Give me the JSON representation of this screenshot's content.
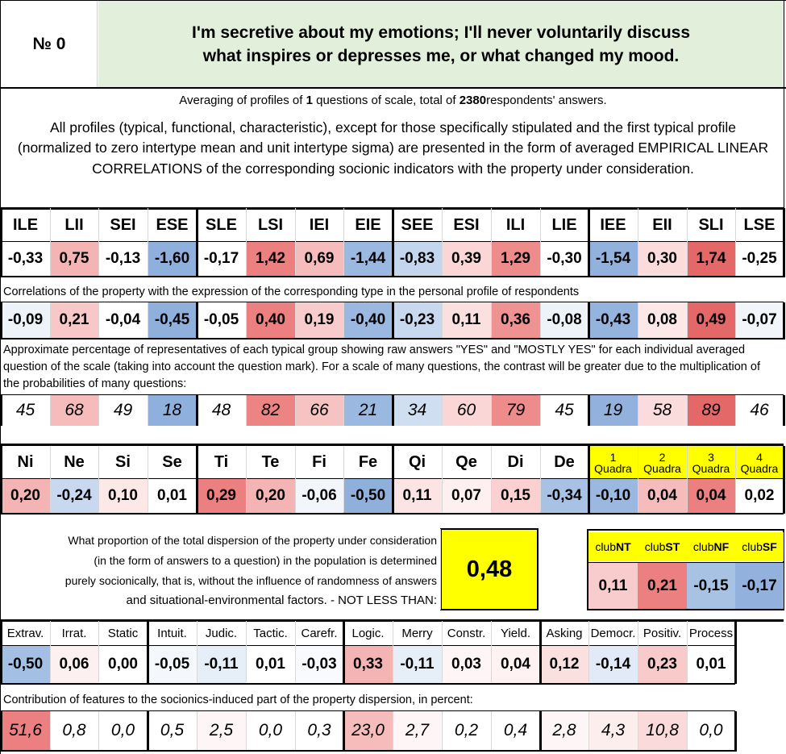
{
  "header": {
    "number_label": "№ 0",
    "title": "I'm secretive about my emotions; I'll never voluntarily discuss what inspires or depresses me, or what changed my mood."
  },
  "averaging": {
    "prefix": "Averaging of profiles of ",
    "questions": "1",
    "middle": " questions of scale, total of ",
    "respondents": "2380",
    "suffix": " respondents' answers."
  },
  "intro": "All profiles (typical, functional, characteristic), except for those specifically stipulated and the first typical profile (normalized to zero intertype mean and unit intertype sigma) are presented in the form of averaged EMPIRICAL LINEAR CORRELATIONS of the corresponding socionic indicators with the property under consideration.",
  "types": [
    "ILE",
    "LII",
    "SEI",
    "ESE",
    "SLE",
    "LSI",
    "IEI",
    "EIE",
    "SEE",
    "ESI",
    "ILI",
    "LIE",
    "IEE",
    "EII",
    "SLI",
    "LSE"
  ],
  "typical_profile": [
    "-0,33",
    "0,75",
    "-0,13",
    "-1,60",
    "-0,17",
    "1,42",
    "0,69",
    "-1,44",
    "-0,83",
    "0,39",
    "1,29",
    "-0,30",
    "-1,54",
    "0,30",
    "1,74",
    "-0,25"
  ],
  "typical_colors": [
    "#ffffff",
    "#f4b4b4",
    "#ffffff",
    "#8fb0dc",
    "#ffffff",
    "#ec7f7f",
    "#f6bcbc",
    "#9ab8e0",
    "#c4d5ee",
    "#fad6d6",
    "#ee8c8c",
    "#ffffff",
    "#92b2dd",
    "#fbdcdc",
    "#e46868",
    "#ffffff"
  ],
  "correlations_note": "Correlations of the property with the expression of the corresponding type in the personal profile of respondents",
  "correlations": [
    "-0,09",
    "0,21",
    "-0,04",
    "-0,45",
    "-0,05",
    "0,40",
    "0,19",
    "-0,40",
    "-0,23",
    "0,11",
    "0,36",
    "-0,08",
    "-0,43",
    "0,08",
    "0,49",
    "-0,07"
  ],
  "correlations_colors": [
    "#eef3fa",
    "#f8c8c8",
    "#ffffff",
    "#90b0dc",
    "#ffffff",
    "#ec7f7f",
    "#f8cccc",
    "#9ab8e0",
    "#c8d8ef",
    "#fbe0e0",
    "#ef9292",
    "#eef3fa",
    "#94b3dd",
    "#fde8e8",
    "#e46868",
    "#f2f6fb"
  ],
  "percentage_note": "Approximate percentage of representatives of each typical group showing raw answers \"YES\" and \"MOSTLY YES\" for each individual averaged question of the scale (taking into account the question mark). For a scale of many questions, the contrast will be greater due to the multiplication of the probabilities of many questions:",
  "percentages": [
    "45",
    "68",
    "49",
    "18",
    "48",
    "82",
    "66",
    "21",
    "34",
    "60",
    "79",
    "45",
    "19",
    "58",
    "89",
    "46"
  ],
  "percentages_colors": [
    "#ffffff",
    "#f6bcbc",
    "#ffffff",
    "#8fb0dc",
    "#ffffff",
    "#ec8484",
    "#f7c2c2",
    "#9ab8e0",
    "#d0def1",
    "#fad6d6",
    "#ee8c8c",
    "#ffffff",
    "#92b2dd",
    "#fbdcdc",
    "#e46868",
    "#ffffff"
  ],
  "functions": [
    "Ni",
    "Ne",
    "Si",
    "Se",
    "Ti",
    "Te",
    "Fi",
    "Fe",
    "Qi",
    "Qe",
    "Di",
    "De"
  ],
  "function_values": [
    "0,20",
    "-0,24",
    "0,10",
    "0,01",
    "0,29",
    "0,20",
    "-0,06",
    "-0,50",
    "0,11",
    "0,07",
    "0,15",
    "-0,34"
  ],
  "function_colors": [
    "#f4b4b4",
    "#c8d8ef",
    "#fde8e8",
    "#ffffff",
    "#ec7f7f",
    "#f4b4b4",
    "#f2f6fb",
    "#90b0dc",
    "#fde4e4",
    "#fef0f0",
    "#fad0d0",
    "#a8c2e4"
  ],
  "quadras": [
    {
      "num": "1",
      "label": "Quadra"
    },
    {
      "num": "2",
      "label": "Quadra"
    },
    {
      "num": "3",
      "label": "Quadra"
    },
    {
      "num": "4",
      "label": "Quadra"
    }
  ],
  "quadra_values": [
    "-0,10",
    "0,04",
    "0,04",
    "0,02"
  ],
  "quadra_colors": [
    "#9ab8e0",
    "#f6bcbc",
    "#ec7f7f",
    "#ffffff"
  ],
  "dispersion_note": [
    "What proportion of the total dispersion of the property under consideration",
    "(in the form of answers to a question) in the population is determined",
    "purely socionically, that is, without the influence of randomness of answers",
    "and situational-environmental factors. - NOT LESS THAN:"
  ],
  "dispersion_value": "0,48",
  "clubs": [
    {
      "pre": "club",
      "suf": "NT"
    },
    {
      "pre": "club",
      "suf": "ST"
    },
    {
      "pre": "club",
      "suf": "NF"
    },
    {
      "pre": "club",
      "suf": "SF"
    }
  ],
  "club_values": [
    "0,11",
    "0,21",
    "-0,15",
    "-0,17"
  ],
  "club_colors": [
    "#f8cccc",
    "#ec7f7f",
    "#a8c2e4",
    "#92b2dd"
  ],
  "features": [
    "Extrav.",
    "Irrat.",
    "Static",
    "Intuit.",
    "Judic.",
    "Tactic.",
    "Carefr.",
    "Logic.",
    "Merry",
    "Constr.",
    "Yield.",
    "Asking",
    "Democr.",
    "Positiv.",
    "Process"
  ],
  "feature_values": [
    "-0,50",
    "0,06",
    "0,00",
    "-0,05",
    "-0,11",
    "0,01",
    "-0,03",
    "0,33",
    "-0,11",
    "0,03",
    "0,04",
    "0,12",
    "-0,14",
    "0,23",
    "0,01"
  ],
  "feature_colors": [
    "#a3bfe3",
    "#fdf0f0",
    "#ffffff",
    "#f4f7fc",
    "#e6eef8",
    "#ffffff",
    "#f8fafd",
    "#f4b4b4",
    "#e6eef8",
    "#fef6f6",
    "#fef2f2",
    "#fbe0e0",
    "#e2eaf7",
    "#f8caca",
    "#ffffff"
  ],
  "contribution_note": "Contribution of features to the socionics-induced part of the property dispersion, in percent:",
  "contributions": [
    "51,6",
    "0,8",
    "0,0",
    "0,5",
    "2,5",
    "0,0",
    "0,3",
    "23,0",
    "2,7",
    "0,2",
    "0,4",
    "2,8",
    "4,3",
    "10,8",
    "0,0"
  ],
  "contribution_colors": [
    "#ec7f7f",
    "#ffffff",
    "#ffffff",
    "#ffffff",
    "#fef6f6",
    "#ffffff",
    "#ffffff",
    "#f6bcbc",
    "#fef6f6",
    "#ffffff",
    "#ffffff",
    "#fef6f6",
    "#fdeeee",
    "#fadada",
    "#ffffff"
  ]
}
